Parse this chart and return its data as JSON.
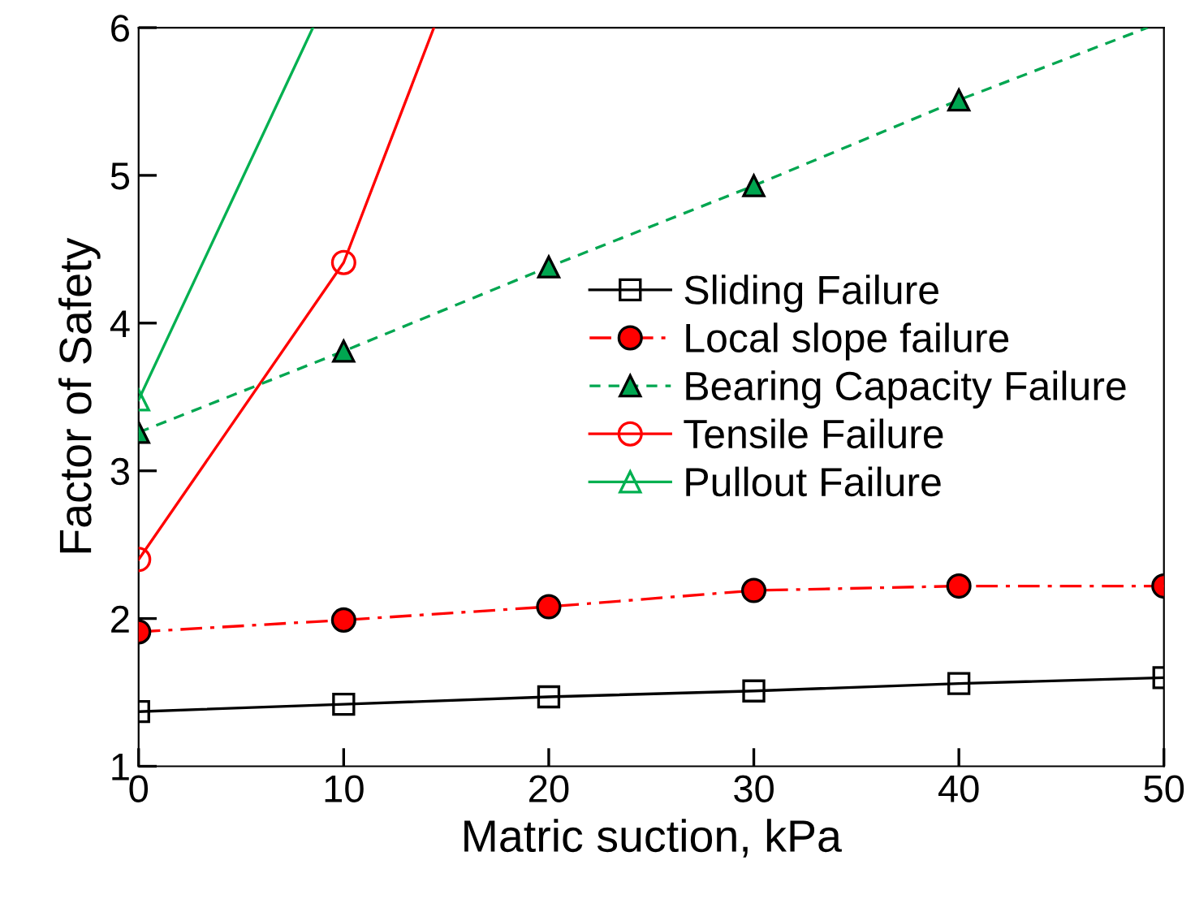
{
  "chart_data": {
    "type": "line",
    "xlabel": "Matric suction, kPa",
    "ylabel": "Factor of Safety",
    "xlim": [
      0,
      50
    ],
    "xticks": [
      0,
      10,
      20,
      30,
      40,
      50
    ],
    "ylim": [
      1,
      6
    ],
    "yticks": [
      1,
      2,
      3,
      4,
      5,
      6
    ],
    "grid": false,
    "legend": "right",
    "series": [
      {
        "name": "Sliding Failure",
        "color": "#000000",
        "marker": "square",
        "line_style": "solid",
        "x": [
          0,
          10,
          20,
          30,
          40,
          50
        ],
        "values": [
          1.37,
          1.42,
          1.47,
          1.51,
          1.56,
          1.6
        ]
      },
      {
        "name": "Local slope failure",
        "color": "#ff0000",
        "marker": "circle",
        "line_style": "dashdot",
        "x": [
          0,
          10,
          20,
          30,
          40,
          50
        ],
        "values": [
          1.91,
          1.99,
          2.08,
          2.19,
          2.22,
          2.22
        ]
      },
      {
        "name": "Bearing Capacity Failure",
        "color": "#00a650",
        "marker": "triangle",
        "line_style": "dashed",
        "x": [
          0,
          10,
          20,
          30,
          40,
          49.2
        ],
        "values": [
          3.26,
          3.81,
          4.38,
          4.93,
          5.51,
          6.0
        ]
      },
      {
        "name": "Tensile Failure",
        "color": "#ff0000",
        "marker": "circle",
        "line_style": "solid",
        "x": [
          0,
          10,
          14.4
        ],
        "values": [
          2.4,
          4.41,
          6.0
        ]
      },
      {
        "name": "Pullout Failure",
        "color": "#00b050",
        "marker": "triangle",
        "line_style": "solid",
        "x": [
          0,
          8.5
        ],
        "values": [
          3.48,
          6.0
        ]
      }
    ]
  }
}
